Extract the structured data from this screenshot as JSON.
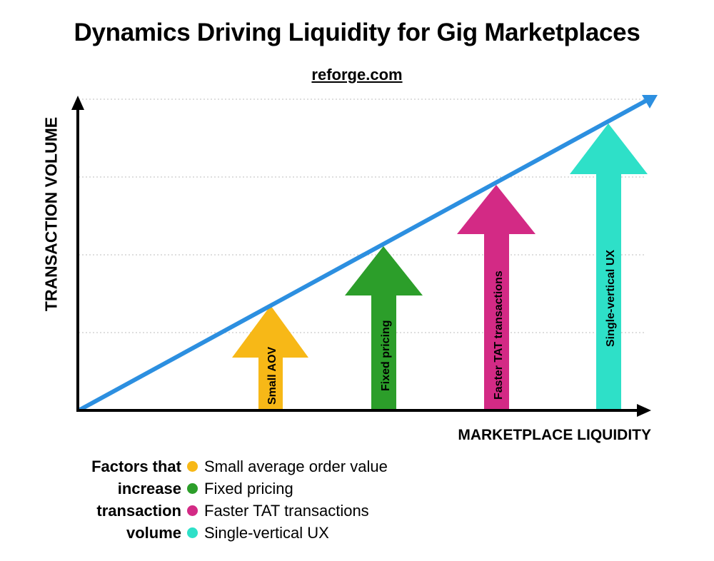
{
  "title": "Dynamics Driving Liquidity for Gig Marketplaces",
  "source": "reforge.com",
  "y_axis_label": "TRANSACTION VOLUME",
  "x_axis_label": "MARKETPLACE LIQUIDITY",
  "trend_color": "#2c8fe0",
  "arrows": [
    {
      "label": "Small AOV",
      "color": "#f7b817"
    },
    {
      "label": "Fixed pricing",
      "color": "#2c9e2a"
    },
    {
      "label": "Faster TAT transactions",
      "color": "#d32a85"
    },
    {
      "label": "Single-vertical UX",
      "color": "#2ee0c8"
    }
  ],
  "legend": {
    "prefix": [
      "Factors that",
      "increase",
      "transaction",
      "volume"
    ],
    "items": [
      {
        "text": "Small average order value",
        "color": "#f7b817"
      },
      {
        "text": "Fixed pricing",
        "color": "#2c9e2a"
      },
      {
        "text": "Faster TAT transactions",
        "color": "#d32a85"
      },
      {
        "text": "Single-vertical UX",
        "color": "#2ee0c8"
      }
    ]
  }
}
